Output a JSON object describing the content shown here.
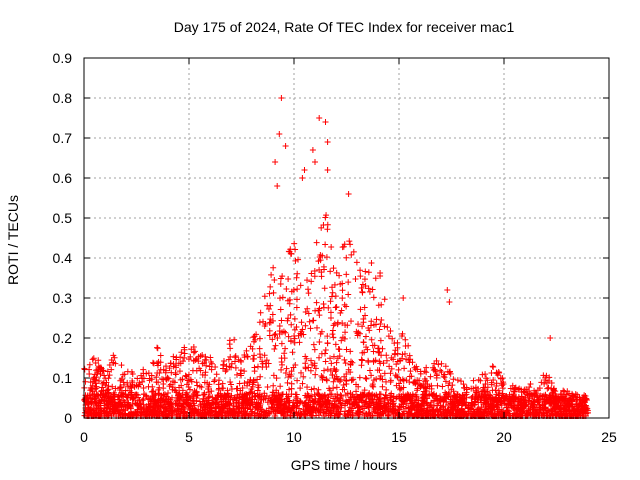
{
  "chart_data": {
    "type": "scatter",
    "title": "Day 175 of 2024, Rate Of TEC Index for receiver mac1",
    "xlabel": "GPS time / hours",
    "ylabel": "ROTI / TECUs",
    "xlim": [
      0,
      25
    ],
    "ylim": [
      0,
      0.9
    ],
    "xticks": [
      0,
      5,
      10,
      15,
      20,
      25
    ],
    "yticks": [
      0,
      0.1,
      0.2,
      0.3,
      0.4,
      0.5,
      0.6,
      0.7,
      0.8,
      0.9
    ],
    "grid": true,
    "marker": "+",
    "color": "#ff0000",
    "envelope": {
      "note": "approximate upper envelope of the dense point cloud (hours, ROTI)",
      "x": [
        0,
        0.5,
        1,
        1.5,
        2,
        2.5,
        3,
        3.5,
        4,
        4.5,
        5,
        5.5,
        6,
        6.5,
        7,
        7.5,
        8,
        8.5,
        9,
        9.5,
        10,
        10.5,
        11,
        11.5,
        12,
        12.5,
        13,
        13.5,
        14,
        14.5,
        15,
        15.5,
        16,
        16.5,
        17,
        17.5,
        18,
        18.5,
        19,
        19.5,
        20,
        20.5,
        21,
        21.5,
        22,
        22.5,
        23,
        23.5,
        24
      ],
      "y": [
        0.13,
        0.18,
        0.12,
        0.18,
        0.12,
        0.14,
        0.12,
        0.2,
        0.14,
        0.18,
        0.2,
        0.18,
        0.16,
        0.12,
        0.22,
        0.16,
        0.2,
        0.3,
        0.45,
        0.4,
        0.48,
        0.35,
        0.45,
        0.55,
        0.4,
        0.5,
        0.42,
        0.4,
        0.42,
        0.25,
        0.25,
        0.18,
        0.14,
        0.14,
        0.16,
        0.12,
        0.1,
        0.1,
        0.12,
        0.14,
        0.1,
        0.08,
        0.08,
        0.1,
        0.12,
        0.08,
        0.07,
        0.06,
        0.06
      ]
    },
    "outliers": [
      {
        "x": 9.4,
        "y": 0.8
      },
      {
        "x": 9.3,
        "y": 0.71
      },
      {
        "x": 9.6,
        "y": 0.68
      },
      {
        "x": 11.2,
        "y": 0.75
      },
      {
        "x": 11.5,
        "y": 0.74
      },
      {
        "x": 11.6,
        "y": 0.69
      },
      {
        "x": 10.9,
        "y": 0.67
      },
      {
        "x": 10.5,
        "y": 0.62
      },
      {
        "x": 10.4,
        "y": 0.6
      },
      {
        "x": 9.1,
        "y": 0.64
      },
      {
        "x": 9.2,
        "y": 0.58
      },
      {
        "x": 11.0,
        "y": 0.64
      },
      {
        "x": 11.6,
        "y": 0.62
      },
      {
        "x": 12.6,
        "y": 0.56
      },
      {
        "x": 17.3,
        "y": 0.32
      },
      {
        "x": 17.4,
        "y": 0.29
      },
      {
        "x": 15.2,
        "y": 0.3
      },
      {
        "x": 22.2,
        "y": 0.2
      }
    ]
  }
}
